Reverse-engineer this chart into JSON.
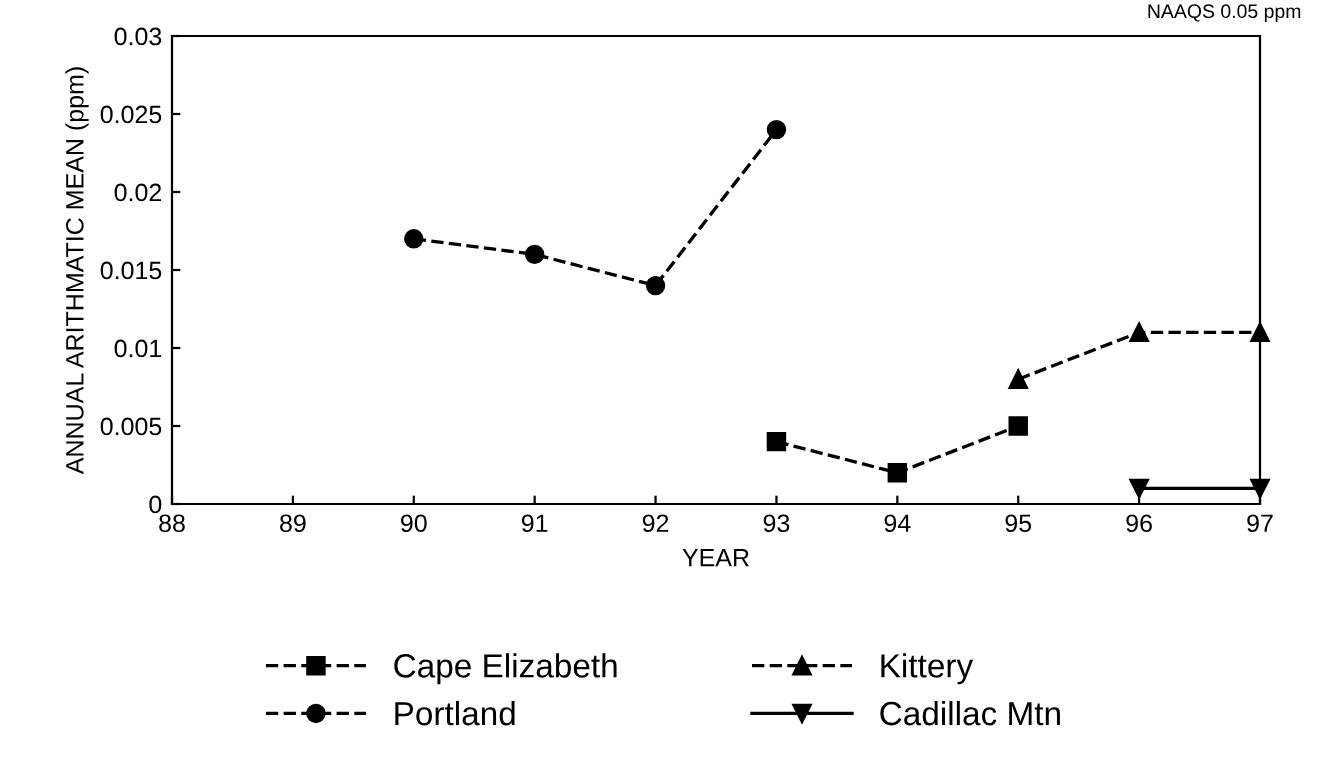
{
  "chart_data": {
    "type": "line",
    "xlabel": "YEAR",
    "ylabel": "ANNUAL ARITHMATIC MEAN (ppm)",
    "annotations": [
      "NAAQS 0.05 ppm"
    ],
    "xlim": [
      88,
      97
    ],
    "xticks": [
      88,
      89,
      90,
      91,
      92,
      93,
      94,
      95,
      96,
      97
    ],
    "ylim": [
      0,
      0.03
    ],
    "yticks": [
      {
        "value": 0,
        "label": "0"
      },
      {
        "value": 0.005,
        "label": "0.005"
      },
      {
        "value": 0.01,
        "label": "0.01"
      },
      {
        "value": 0.015,
        "label": "0.015"
      },
      {
        "value": 0.02,
        "label": "0.02"
      },
      {
        "value": 0.025,
        "label": "0.025"
      },
      {
        "value": 0.03,
        "label": "0.03"
      }
    ],
    "grid": false,
    "legend": "bottom",
    "series": [
      {
        "name": "Cape Elizabeth",
        "color": "#000000",
        "marker": "square",
        "line_style": "dashed",
        "x": [
          93,
          94,
          95
        ],
        "values": [
          0.004,
          0.002,
          0.005
        ]
      },
      {
        "name": "Portland",
        "color": "#000000",
        "marker": "circle",
        "line_style": "dashed",
        "x": [
          90,
          91,
          92,
          93
        ],
        "values": [
          0.017,
          0.016,
          0.014,
          0.024
        ]
      },
      {
        "name": "Kittery",
        "color": "#000000",
        "marker": "triangle",
        "line_style": "dashed",
        "x": [
          95,
          96,
          97
        ],
        "values": [
          0.008,
          0.011,
          0.011
        ]
      },
      {
        "name": "Cadillac Mtn",
        "color": "#000000",
        "marker": "triangle_down",
        "line_style": "solid",
        "x": [
          96,
          97
        ],
        "values": [
          0.001,
          0.001
        ]
      }
    ]
  }
}
